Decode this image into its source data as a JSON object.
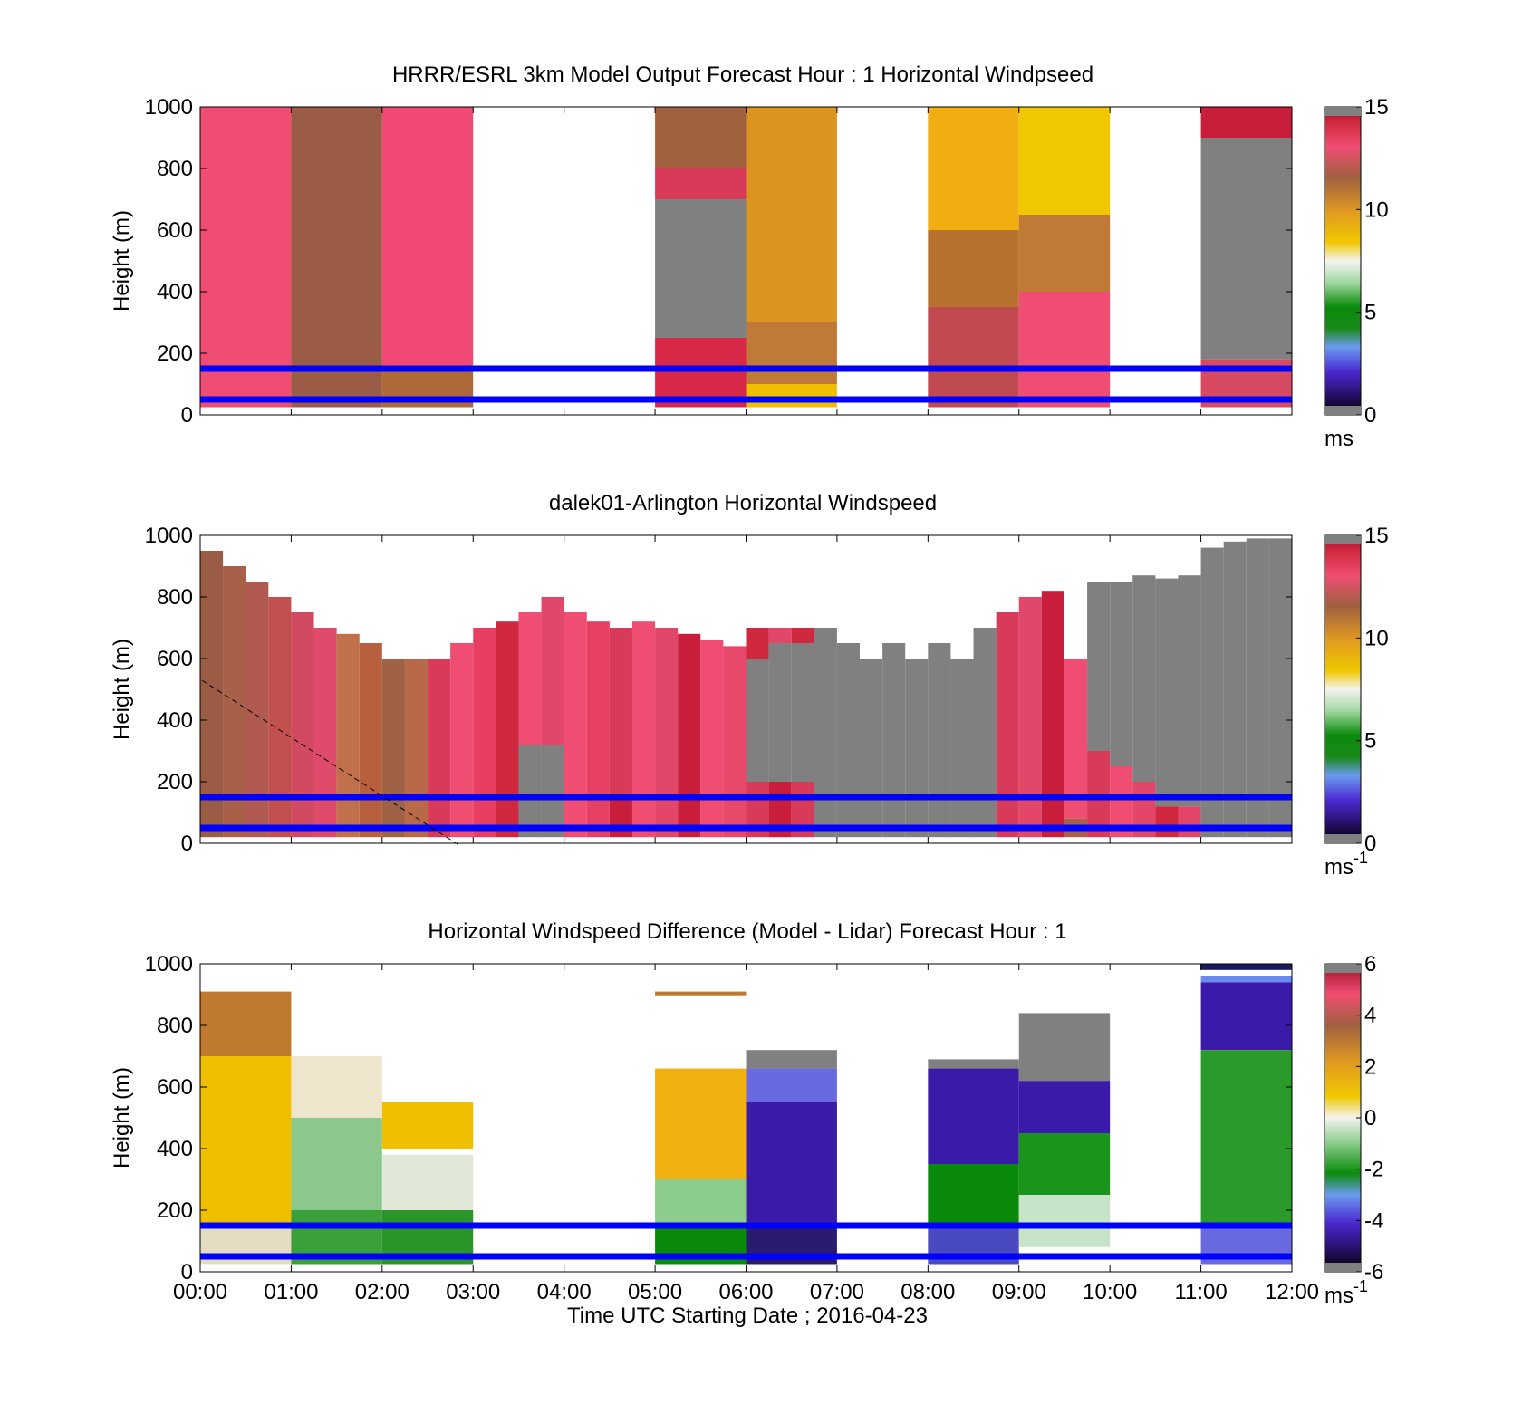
{
  "figure": {
    "x_tick_labels": [
      "00:00",
      "01:00",
      "02:00",
      "03:00",
      "04:00",
      "05:00",
      "06:00",
      "07:00",
      "08:00",
      "09:00",
      "10:00",
      "11:00",
      "12:00"
    ],
    "xlabel": "Time UTC  Starting Date ; 2016-04-23",
    "reference_line_color": "#0000ff",
    "missing_color": "#808080"
  },
  "chart_data": [
    {
      "type": "heatmap",
      "title": "HRRR/ESRL 3km Model Output   Forecast Hour : 1 Horizontal Windpseed",
      "ylabel": "Height (m)",
      "ylim": [
        0,
        1000
      ],
      "y_ticks": [
        "0",
        "200",
        "400",
        "600",
        "800",
        "1000"
      ],
      "xlim_hours": [
        0,
        12
      ],
      "colorbar": {
        "ticks": [
          "0",
          "5",
          "10",
          "15"
        ],
        "range": [
          0,
          15
        ],
        "unit_label": "ms"
      },
      "reference_lines_m": [
        150,
        50
      ],
      "columns": [
        {
          "start_h": 0,
          "end_h": 1,
          "segments": [
            [
              25,
              1000,
              "#ef4d72"
            ]
          ]
        },
        {
          "start_h": 1,
          "end_h": 2,
          "segments": [
            [
              25,
              1000,
              "#9a5c44"
            ]
          ]
        },
        {
          "start_h": 2,
          "end_h": 3,
          "segments": [
            [
              150,
              1000,
              "#f04a74"
            ],
            [
              25,
              150,
              "#b06a3a"
            ]
          ]
        },
        {
          "start_h": 5,
          "end_h": 6,
          "segments": [
            [
              800,
              1000,
              "#a0623e"
            ],
            [
              700,
              800,
              "#d83a5a"
            ],
            [
              250,
              700,
              "#808080"
            ],
            [
              25,
              250,
              "#d82848"
            ]
          ]
        },
        {
          "start_h": 6,
          "end_h": 7,
          "segments": [
            [
              300,
              1000,
              "#dc9420"
            ],
            [
              100,
              300,
              "#c07a38"
            ],
            [
              25,
              100,
              "#f0c000"
            ]
          ]
        },
        {
          "start_h": 8,
          "end_h": 9,
          "segments": [
            [
              600,
              1000,
              "#f0ae10"
            ],
            [
              350,
              600,
              "#b87230"
            ],
            [
              25,
              350,
              "#c04a50"
            ]
          ]
        },
        {
          "start_h": 9,
          "end_h": 10,
          "segments": [
            [
              650,
              1000,
              "#f0c800"
            ],
            [
              400,
              650,
              "#c07a38"
            ],
            [
              25,
              400,
              "#ef4d72"
            ]
          ]
        },
        {
          "start_h": 11,
          "end_h": 12,
          "segments": [
            [
              900,
              1000,
              "#c81e3c"
            ],
            [
              180,
              900,
              "#808080"
            ],
            [
              25,
              180,
              "#d84a62"
            ]
          ]
        }
      ]
    },
    {
      "type": "heatmap",
      "title": "dalek01-Arlington  Horizontal Windspeed",
      "ylabel": "Height (m)",
      "ylim": [
        0,
        1000
      ],
      "y_ticks": [
        "0",
        "200",
        "400",
        "600",
        "800",
        "1000"
      ],
      "xlim_hours": [
        0,
        12
      ],
      "colorbar": {
        "ticks": [
          "0",
          "5",
          "10",
          "15"
        ],
        "range": [
          0,
          15
        ],
        "unit_label": "ms",
        "unit_exponent": "-1"
      },
      "reference_lines_m": [
        150,
        50
      ],
      "columns": [
        {
          "start_h": 0.0,
          "end_h": 0.25,
          "segments": [
            [
              20,
              950,
              "#9a5c44"
            ]
          ]
        },
        {
          "start_h": 0.25,
          "end_h": 0.5,
          "segments": [
            [
              20,
              900,
              "#a86048"
            ]
          ]
        },
        {
          "start_h": 0.5,
          "end_h": 0.75,
          "segments": [
            [
              20,
              850,
              "#b05a52"
            ]
          ]
        },
        {
          "start_h": 0.75,
          "end_h": 1.0,
          "segments": [
            [
              20,
              800,
              "#c2504e"
            ]
          ]
        },
        {
          "start_h": 1.0,
          "end_h": 1.25,
          "segments": [
            [
              20,
              750,
              "#d24a62"
            ]
          ]
        },
        {
          "start_h": 1.25,
          "end_h": 1.5,
          "segments": [
            [
              20,
              700,
              "#e04a6a"
            ]
          ]
        },
        {
          "start_h": 1.5,
          "end_h": 1.75,
          "segments": [
            [
              20,
              680,
              "#c0704a"
            ]
          ]
        },
        {
          "start_h": 1.75,
          "end_h": 2.0,
          "segments": [
            [
              20,
              650,
              "#b8603e"
            ]
          ]
        },
        {
          "start_h": 2.0,
          "end_h": 2.25,
          "segments": [
            [
              20,
              600,
              "#a06244"
            ]
          ]
        },
        {
          "start_h": 2.25,
          "end_h": 2.5,
          "segments": [
            [
              20,
              600,
              "#b86a48"
            ]
          ]
        },
        {
          "start_h": 2.5,
          "end_h": 2.75,
          "segments": [
            [
              20,
              600,
              "#d83a5a"
            ]
          ]
        },
        {
          "start_h": 2.75,
          "end_h": 3.0,
          "segments": [
            [
              20,
              650,
              "#ef4d72"
            ]
          ]
        },
        {
          "start_h": 3.0,
          "end_h": 3.25,
          "segments": [
            [
              20,
              700,
              "#e83e62"
            ]
          ]
        },
        {
          "start_h": 3.25,
          "end_h": 3.5,
          "segments": [
            [
              20,
              720,
              "#d0283e"
            ]
          ]
        },
        {
          "start_h": 3.5,
          "end_h": 3.75,
          "segments": [
            [
              320,
              750,
              "#ef4d72"
            ],
            [
              20,
              320,
              "#808080"
            ]
          ]
        },
        {
          "start_h": 3.75,
          "end_h": 4.0,
          "segments": [
            [
              320,
              800,
              "#e24668"
            ],
            [
              20,
              320,
              "#808080"
            ]
          ]
        },
        {
          "start_h": 4.0,
          "end_h": 4.25,
          "segments": [
            [
              20,
              750,
              "#ef4d72"
            ]
          ]
        },
        {
          "start_h": 4.25,
          "end_h": 4.5,
          "segments": [
            [
              20,
              720,
              "#e64064"
            ]
          ]
        },
        {
          "start_h": 4.5,
          "end_h": 4.75,
          "segments": [
            [
              150,
              700,
              "#d83a5a"
            ],
            [
              20,
              150,
              "#c81e3c"
            ]
          ]
        },
        {
          "start_h": 4.75,
          "end_h": 5.0,
          "segments": [
            [
              20,
              720,
              "#ef4d72"
            ]
          ]
        },
        {
          "start_h": 5.0,
          "end_h": 5.25,
          "segments": [
            [
              20,
              700,
              "#e24668"
            ]
          ]
        },
        {
          "start_h": 5.25,
          "end_h": 5.5,
          "segments": [
            [
              20,
              680,
              "#c81e3c"
            ]
          ]
        },
        {
          "start_h": 5.5,
          "end_h": 5.75,
          "segments": [
            [
              20,
              660,
              "#ef4d72"
            ]
          ]
        },
        {
          "start_h": 5.75,
          "end_h": 6.0,
          "segments": [
            [
              20,
              640,
              "#e8486a"
            ]
          ]
        },
        {
          "start_h": 6.0,
          "end_h": 6.25,
          "segments": [
            [
              600,
              700,
              "#d0283e"
            ],
            [
              200,
              600,
              "#808080"
            ],
            [
              20,
              200,
              "#d83a5a"
            ]
          ]
        },
        {
          "start_h": 6.25,
          "end_h": 6.5,
          "segments": [
            [
              650,
              700,
              "#e24668"
            ],
            [
              200,
              650,
              "#808080"
            ],
            [
              20,
              200,
              "#c81e3c"
            ]
          ]
        },
        {
          "start_h": 6.5,
          "end_h": 6.75,
          "segments": [
            [
              650,
              700,
              "#d0283e"
            ],
            [
              200,
              650,
              "#808080"
            ],
            [
              20,
              200,
              "#d83a5a"
            ]
          ]
        },
        {
          "start_h": 6.75,
          "end_h": 7.0,
          "segments": [
            [
              20,
              700,
              "#808080"
            ]
          ]
        },
        {
          "start_h": 7.0,
          "end_h": 7.25,
          "segments": [
            [
              20,
              650,
              "#808080"
            ]
          ]
        },
        {
          "start_h": 7.25,
          "end_h": 7.5,
          "segments": [
            [
              20,
              600,
              "#808080"
            ]
          ]
        },
        {
          "start_h": 7.5,
          "end_h": 7.75,
          "segments": [
            [
              20,
              650,
              "#808080"
            ]
          ]
        },
        {
          "start_h": 7.75,
          "end_h": 8.0,
          "segments": [
            [
              20,
              600,
              "#808080"
            ]
          ]
        },
        {
          "start_h": 8.0,
          "end_h": 8.25,
          "segments": [
            [
              20,
              650,
              "#808080"
            ]
          ]
        },
        {
          "start_h": 8.25,
          "end_h": 8.5,
          "segments": [
            [
              20,
              600,
              "#808080"
            ]
          ]
        },
        {
          "start_h": 8.5,
          "end_h": 8.75,
          "segments": [
            [
              20,
              700,
              "#808080"
            ]
          ]
        },
        {
          "start_h": 8.75,
          "end_h": 9.0,
          "segments": [
            [
              20,
              750,
              "#d83a5a"
            ]
          ]
        },
        {
          "start_h": 9.0,
          "end_h": 9.25,
          "segments": [
            [
              20,
              800,
              "#e24668"
            ]
          ]
        },
        {
          "start_h": 9.25,
          "end_h": 9.5,
          "segments": [
            [
              20,
              820,
              "#c81e3c"
            ]
          ]
        },
        {
          "start_h": 9.5,
          "end_h": 9.75,
          "segments": [
            [
              80,
              600,
              "#ef4d72"
            ],
            [
              20,
              80,
              "#a86048"
            ]
          ]
        },
        {
          "start_h": 9.75,
          "end_h": 10.0,
          "segments": [
            [
              300,
              850,
              "#808080"
            ],
            [
              20,
              300,
              "#d83a5a"
            ]
          ]
        },
        {
          "start_h": 10.0,
          "end_h": 10.25,
          "segments": [
            [
              250,
              850,
              "#808080"
            ],
            [
              20,
              250,
              "#ef4d72"
            ]
          ]
        },
        {
          "start_h": 10.25,
          "end_h": 10.5,
          "segments": [
            [
              200,
              870,
              "#808080"
            ],
            [
              20,
              200,
              "#e24668"
            ]
          ]
        },
        {
          "start_h": 10.5,
          "end_h": 10.75,
          "segments": [
            [
              120,
              860,
              "#808080"
            ],
            [
              20,
              120,
              "#d0283e"
            ]
          ]
        },
        {
          "start_h": 10.75,
          "end_h": 11.0,
          "segments": [
            [
              120,
              870,
              "#808080"
            ],
            [
              20,
              120,
              "#e24668"
            ]
          ]
        },
        {
          "start_h": 11.0,
          "end_h": 11.25,
          "segments": [
            [
              20,
              960,
              "#808080"
            ]
          ]
        },
        {
          "start_h": 11.25,
          "end_h": 11.5,
          "segments": [
            [
              20,
              980,
              "#808080"
            ]
          ]
        },
        {
          "start_h": 11.5,
          "end_h": 11.75,
          "segments": [
            [
              20,
              990,
              "#808080"
            ]
          ]
        },
        {
          "start_h": 11.75,
          "end_h": 12.0,
          "segments": [
            [
              20,
              990,
              "#808080"
            ]
          ]
        }
      ]
    },
    {
      "type": "heatmap",
      "title": "Horizontal Windspeed Difference (Model - Lidar) Forecast Hour : 1",
      "ylabel": "Height (m)",
      "ylim": [
        0,
        1000
      ],
      "y_ticks": [
        "0",
        "200",
        "400",
        "600",
        "800",
        "1000"
      ],
      "xlim_hours": [
        0,
        12
      ],
      "colorbar": {
        "ticks": [
          "-6",
          "-4",
          "-2",
          "0",
          "2",
          "4",
          "6"
        ],
        "range": [
          -6,
          6
        ],
        "unit_label": "ms",
        "unit_exponent": "-1"
      },
      "reference_lines_m": [
        150,
        50
      ],
      "columns": [
        {
          "start_h": 0,
          "end_h": 1,
          "segments": [
            [
              700,
              910,
              "#c07a30"
            ],
            [
              150,
              700,
              "#f0c000"
            ],
            [
              25,
              150,
              "#e4dcc0"
            ]
          ]
        },
        {
          "start_h": 1,
          "end_h": 2,
          "segments": [
            [
              500,
              700,
              "#ede6cc"
            ],
            [
              200,
              500,
              "#8cc88c"
            ],
            [
              25,
              200,
              "#3aa03a"
            ]
          ]
        },
        {
          "start_h": 2,
          "end_h": 3,
          "segments": [
            [
              400,
              550,
              "#f0c000"
            ],
            [
              200,
              380,
              "#e0e8d8"
            ],
            [
              25,
              200,
              "#2a962a"
            ]
          ]
        },
        {
          "start_h": 5,
          "end_h": 6,
          "segments": [
            [
              898,
              910,
              "#c07a30"
            ],
            [
              300,
              660,
              "#f0b010"
            ],
            [
              150,
              300,
              "#8ccc8c"
            ],
            [
              25,
              150,
              "#0a8a0a"
            ]
          ]
        },
        {
          "start_h": 6,
          "end_h": 7,
          "segments": [
            [
              660,
              720,
              "#808080"
            ],
            [
              550,
              660,
              "#6a6ae0"
            ],
            [
              150,
              550,
              "#3a1aa8"
            ],
            [
              25,
              150,
              "#2a1a70"
            ]
          ]
        },
        {
          "start_h": 8,
          "end_h": 9,
          "segments": [
            [
              660,
              690,
              "#808080"
            ],
            [
              350,
              660,
              "#3a1aa8"
            ],
            [
              150,
              350,
              "#0a8a0a"
            ],
            [
              25,
              150,
              "#4a4ac0"
            ]
          ]
        },
        {
          "start_h": 9,
          "end_h": 10,
          "segments": [
            [
              620,
              840,
              "#808080"
            ],
            [
              450,
              620,
              "#3a1aa8"
            ],
            [
              250,
              450,
              "#1a941a"
            ],
            [
              80,
              250,
              "#c8e4c8"
            ]
          ]
        },
        {
          "start_h": 11,
          "end_h": 12,
          "segments": [
            [
              980,
              1000,
              "#1a1a60"
            ],
            [
              940,
              960,
              "#6a8af0"
            ],
            [
              720,
              940,
              "#3a1aa8"
            ],
            [
              150,
              720,
              "#2a9a2a"
            ],
            [
              25,
              150,
              "#6a6ae0"
            ]
          ]
        }
      ]
    }
  ]
}
